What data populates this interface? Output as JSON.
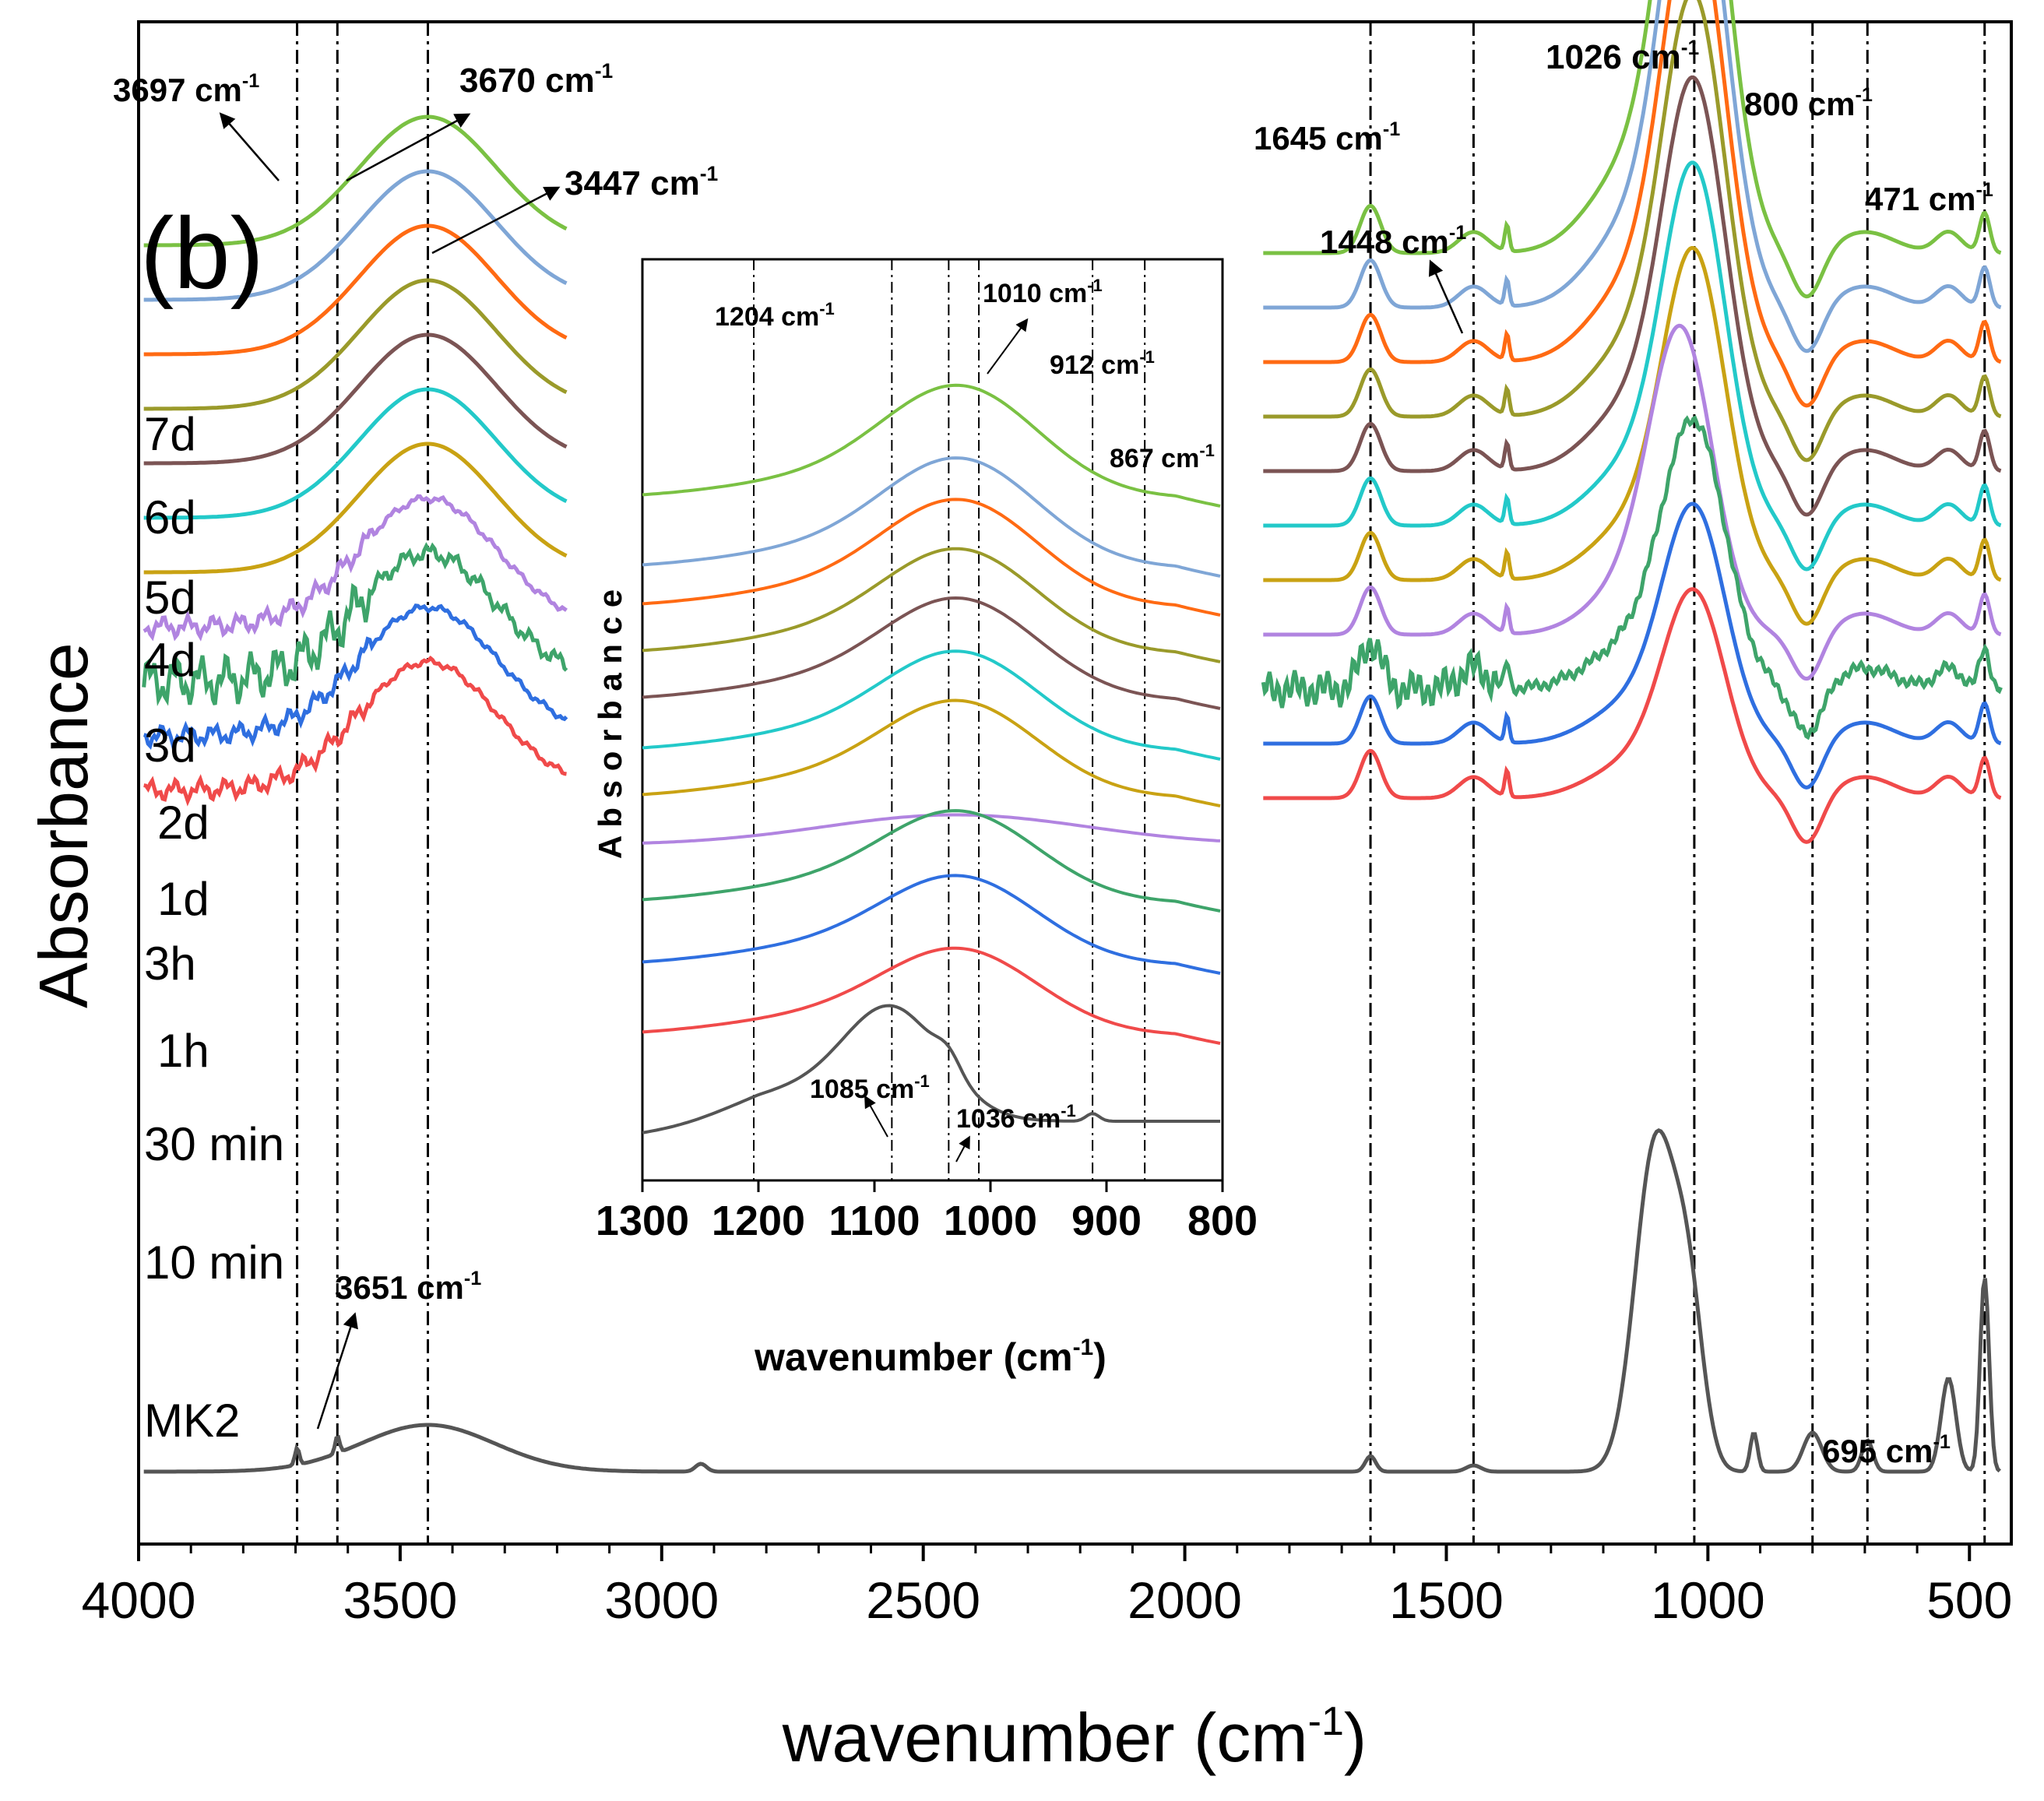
{
  "chart_data": [
    {
      "type": "line",
      "panel": "(b)",
      "xlabel": "wavenumber (cm",
      "xlabel_sup": "-1",
      "xlabel_close": ")",
      "ylabel": "Absorbance",
      "xlim": [
        4000,
        420
      ],
      "xticks": [
        4000,
        3500,
        3000,
        2500,
        2000,
        1500,
        1000,
        500
      ],
      "yticks_shown": false,
      "series": [
        {
          "name": "7d",
          "color": "#7ac143",
          "offset": 10
        },
        {
          "name": "6d",
          "color": "#7fa6d6",
          "offset": 9
        },
        {
          "name": "5d",
          "color": "#ff6a13",
          "offset": 8
        },
        {
          "name": "4d",
          "color": "#9a9a2a",
          "offset": 7
        },
        {
          "name": "3d",
          "color": "#7b5454",
          "offset": 6
        },
        {
          "name": "2d",
          "color": "#23c9c9",
          "offset": 5
        },
        {
          "name": "1d",
          "color": "#c9a213",
          "offset": 4
        },
        {
          "name": "3h",
          "color": "#b184e0",
          "offset": 3
        },
        {
          "name": "1h",
          "color": "#3ea46a",
          "offset": 2
        },
        {
          "name": "30 min",
          "color": "#2f6fe0",
          "offset": 1
        },
        {
          "name": "10 min",
          "color": "#f04a4a",
          "offset": 0
        },
        {
          "name": "MK2",
          "color": "#555555",
          "offset": -1
        }
      ],
      "vlines": [
        3697,
        3620,
        3447,
        1645,
        1448,
        1026,
        800,
        695,
        471
      ],
      "annotations": [
        {
          "label": "3697 cm",
          "sup": "-1"
        },
        {
          "label": "3670 cm",
          "sup": "-1"
        },
        {
          "label": "3447 cm",
          "sup": "-1"
        },
        {
          "label": "3651 cm",
          "sup": "-1"
        },
        {
          "label": "1645 cm",
          "sup": "-1"
        },
        {
          "label": "1448 cm",
          "sup": "-1"
        },
        {
          "label": "1026 cm",
          "sup": "-1"
        },
        {
          "label": "800 cm",
          "sup": "-1"
        },
        {
          "label": "471 cm",
          "sup": "-1"
        },
        {
          "label": "695 cm",
          "sup": "-1"
        }
      ]
    },
    {
      "type": "line",
      "panel": "inset",
      "xlabel": "wavenumber (cm",
      "xlabel_sup": "-1",
      "xlabel_close": ")",
      "ylabel": "A b s o r b a n c e",
      "xlim": [
        1300,
        800
      ],
      "xticks": [
        1300,
        1200,
        1100,
        1000,
        900,
        800
      ],
      "vlines": [
        1204,
        1085,
        1036,
        1010,
        912,
        867
      ],
      "annotations": [
        {
          "label": "1204 cm",
          "sup": "-1"
        },
        {
          "label": "1010 cm",
          "sup": "-1"
        },
        {
          "label": "912 cm",
          "sup": "-1"
        },
        {
          "label": "867 cm",
          "sup": "-1"
        },
        {
          "label": "1085 cm",
          "sup": "-1"
        },
        {
          "label": "1036 cm",
          "sup": "-1"
        }
      ]
    }
  ]
}
